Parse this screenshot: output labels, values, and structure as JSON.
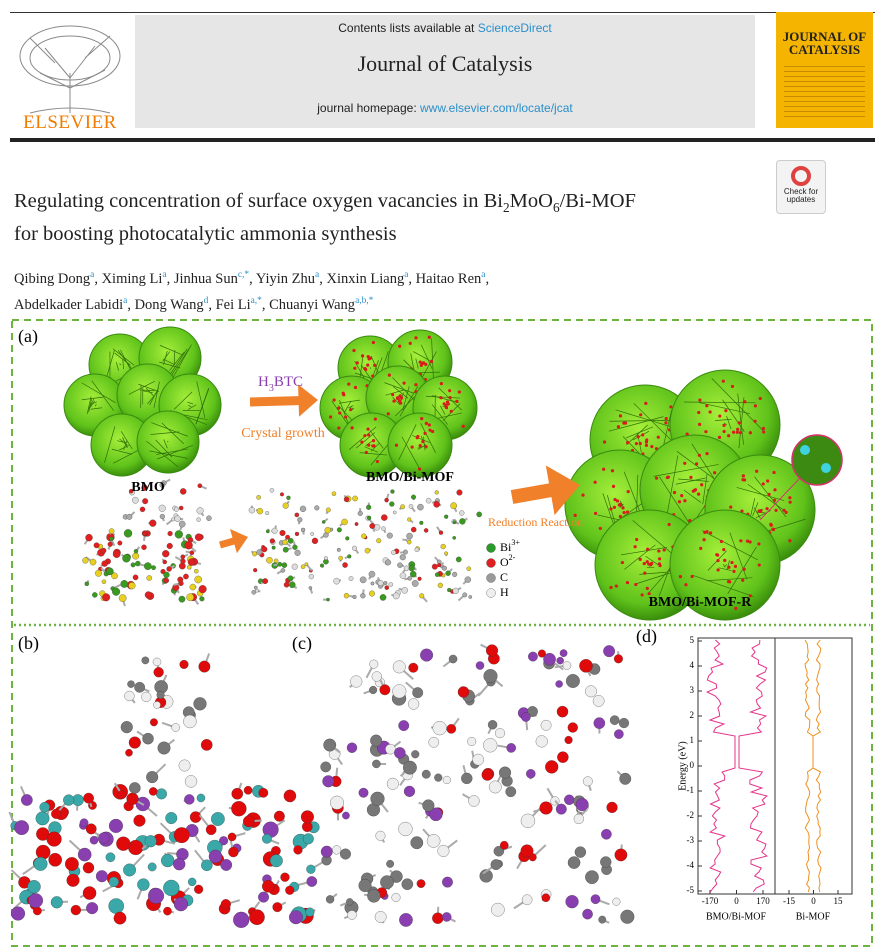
{
  "header": {
    "publisher": "ELSEVIER",
    "contents_prefix": "Contents lists available at",
    "contents_link": "ScienceDirect",
    "journal": "Journal of Catalysis",
    "homepage_prefix": "journal homepage:",
    "homepage_link": "www.elsevier.com/locate/jcat",
    "cover_title": "JOURNAL OF CATALYSIS",
    "badge": "Check for updates"
  },
  "title": {
    "segments": [
      "Regulating concentration of surface oxygen vacancies in Bi",
      "2",
      "MoO",
      "6",
      "/Bi-MOF",
      "for boosting photocatalytic ammonia synthesis"
    ]
  },
  "authors": [
    {
      "name": "Qibing Dong",
      "aff": "a"
    },
    {
      "name": "Ximing Li",
      "aff": "a"
    },
    {
      "name": "Jinhua Sun",
      "aff": "c,*"
    },
    {
      "name": "Yiyin Zhu",
      "aff": "a"
    },
    {
      "name": "Xinxin Liang",
      "aff": "a"
    },
    {
      "name": "Haitao Ren",
      "aff": "a"
    },
    {
      "name": "Abdelkader Labidi",
      "aff": "a"
    },
    {
      "name": "Dong Wang",
      "aff": "d"
    },
    {
      "name": "Fei Li",
      "aff": "a,*"
    },
    {
      "name": "Chuanyi Wang",
      "aff": "a,b,*"
    }
  ],
  "figure": {
    "panel_a": {
      "label": "(a)",
      "reagent": [
        "H",
        "3",
        "BTC"
      ],
      "step1": "Crystal growth",
      "bmo": "BMO",
      "bmo_mof": "BMO/Bi-MOF",
      "step2": "Reduction Reaction",
      "legend": [
        {
          "symbol": "Bi",
          "charge": "3+"
        },
        {
          "symbol": "O",
          "charge": "2-"
        },
        {
          "symbol": "C"
        },
        {
          "symbol": "H"
        }
      ],
      "product": "BMO/Bi-MOF-R"
    },
    "panel_b": {
      "label": "(b)"
    },
    "panel_c": {
      "label": "(c)"
    },
    "panel_d": {
      "label": "(d)",
      "ylabel": "Energy (eV)",
      "yticks": [
        5,
        4,
        3,
        2,
        1,
        0,
        -1,
        -2,
        -3,
        -4,
        -5
      ],
      "left_xticks": [
        -170,
        0,
        170
      ],
      "right_xticks": [
        -15,
        0,
        15
      ],
      "left_xlabel": "BMO/Bi-MOF",
      "right_xlabel": "Bi-MOF"
    }
  }
}
